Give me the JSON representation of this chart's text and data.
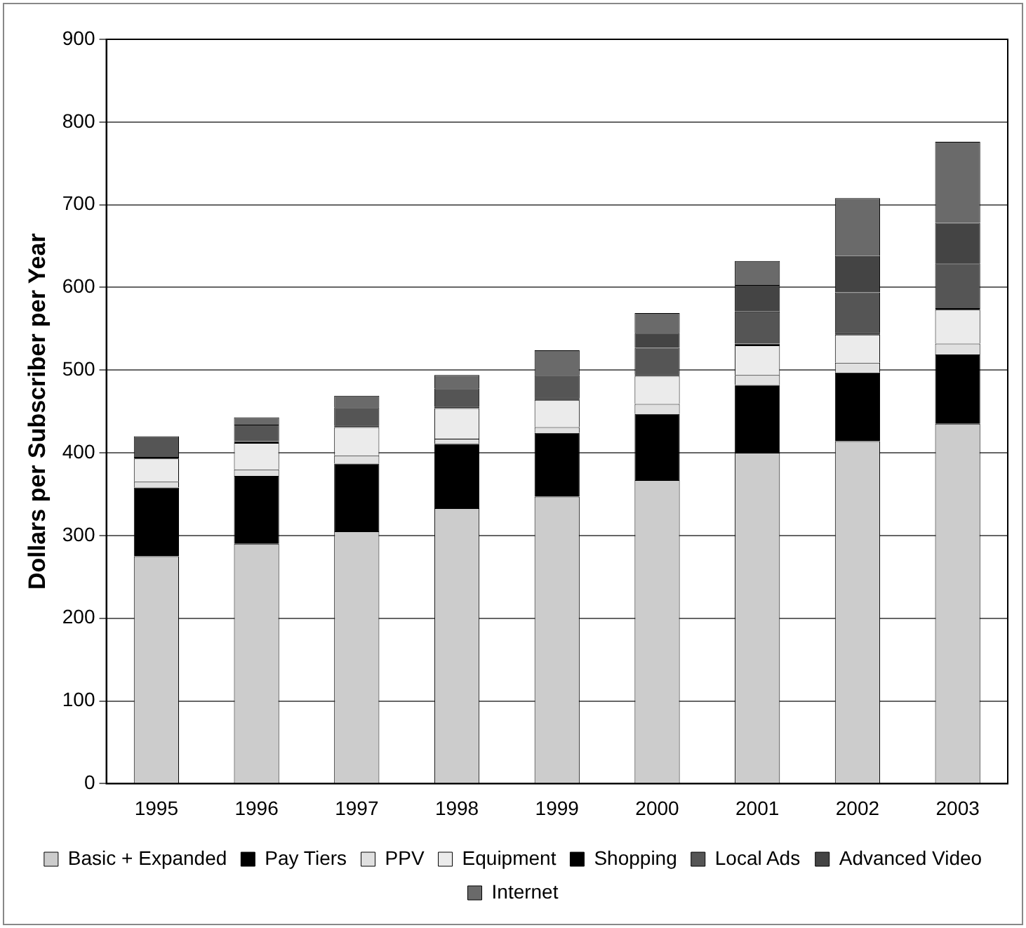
{
  "chart_data": {
    "type": "bar",
    "stacked": true,
    "ylabel": "Dollars per Subscriber per Year",
    "categories": [
      "1995",
      "1996",
      "1997",
      "1998",
      "1999",
      "2000",
      "2001",
      "2002",
      "2003"
    ],
    "series": [
      {
        "name": "Basic + Expanded",
        "color": "#cccccc",
        "values": [
          275,
          290,
          305,
          333,
          347,
          367,
          400,
          414,
          435
        ]
      },
      {
        "name": "Pay Tiers",
        "color": "#000000",
        "values": [
          83,
          82,
          82,
          78,
          77,
          80,
          82,
          83,
          84
        ]
      },
      {
        "name": "PPV",
        "color": "#e0e0e0",
        "values": [
          7,
          8,
          10,
          6,
          7,
          12,
          12,
          12,
          13
        ]
      },
      {
        "name": "Equipment",
        "color": "#ebebeb",
        "values": [
          28,
          32,
          34,
          37,
          33,
          34,
          36,
          34,
          41
        ]
      },
      {
        "name": "Shopping",
        "color": "#000000",
        "values": [
          2,
          2,
          2,
          2,
          2,
          2,
          2,
          2,
          2
        ]
      },
      {
        "name": "Local Ads",
        "color": "#555555",
        "values": [
          25,
          20,
          22,
          22,
          28,
          32,
          39,
          49,
          54
        ]
      },
      {
        "name": "Advanced Video",
        "color": "#444444",
        "values": [
          0,
          0,
          0,
          0,
          0,
          18,
          32,
          44,
          49
        ]
      },
      {
        "name": "Internet",
        "color": "#6a6a6a",
        "values": [
          0,
          9,
          14,
          16,
          30,
          24,
          29,
          70,
          98
        ]
      }
    ],
    "ylim": [
      0,
      900
    ],
    "yticks": [
      0,
      100,
      200,
      300,
      400,
      500,
      600,
      700,
      800,
      900
    ],
    "grid": "y",
    "legend": "bottom"
  }
}
